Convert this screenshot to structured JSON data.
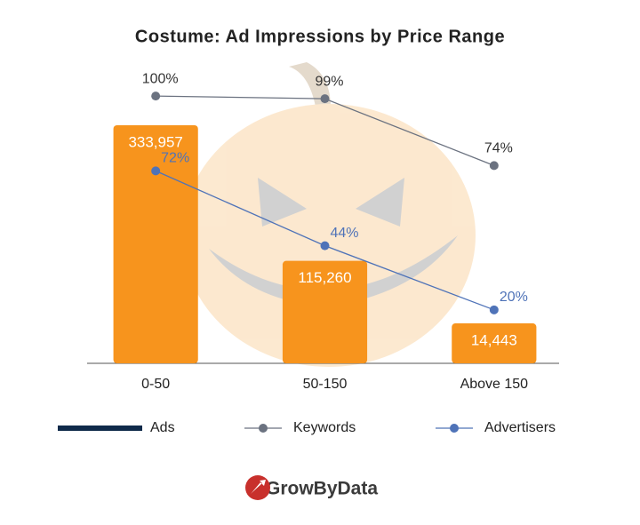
{
  "chart_data": {
    "type": "bar_line",
    "title": "Costume: Ad Impressions by Price Range",
    "categories": [
      "0-50",
      "50-150",
      "Above 150"
    ],
    "ylim": [
      -50000,
      450000
    ],
    "y2lim": [
      0,
      116
    ],
    "series": [
      {
        "name": "Ads",
        "type": "bar",
        "color": "#f7941d",
        "legend_color": "#0f2a4a",
        "values": [
          333957,
          115260,
          14443
        ],
        "value_labels": [
          "333,957",
          "115,260",
          "14,443"
        ]
      },
      {
        "name": "Keywords",
        "type": "line",
        "axis": "y2",
        "color": "#6b7280",
        "values": [
          100,
          99,
          74
        ],
        "value_labels": [
          "100%",
          "99%",
          "74%"
        ]
      },
      {
        "name": "Advertisers",
        "type": "line",
        "axis": "y2",
        "color": "#4f73b8",
        "values": [
          72,
          44,
          20
        ],
        "value_labels": [
          "72%",
          "44%",
          "20%"
        ]
      }
    ],
    "logo": "GrowByData"
  }
}
